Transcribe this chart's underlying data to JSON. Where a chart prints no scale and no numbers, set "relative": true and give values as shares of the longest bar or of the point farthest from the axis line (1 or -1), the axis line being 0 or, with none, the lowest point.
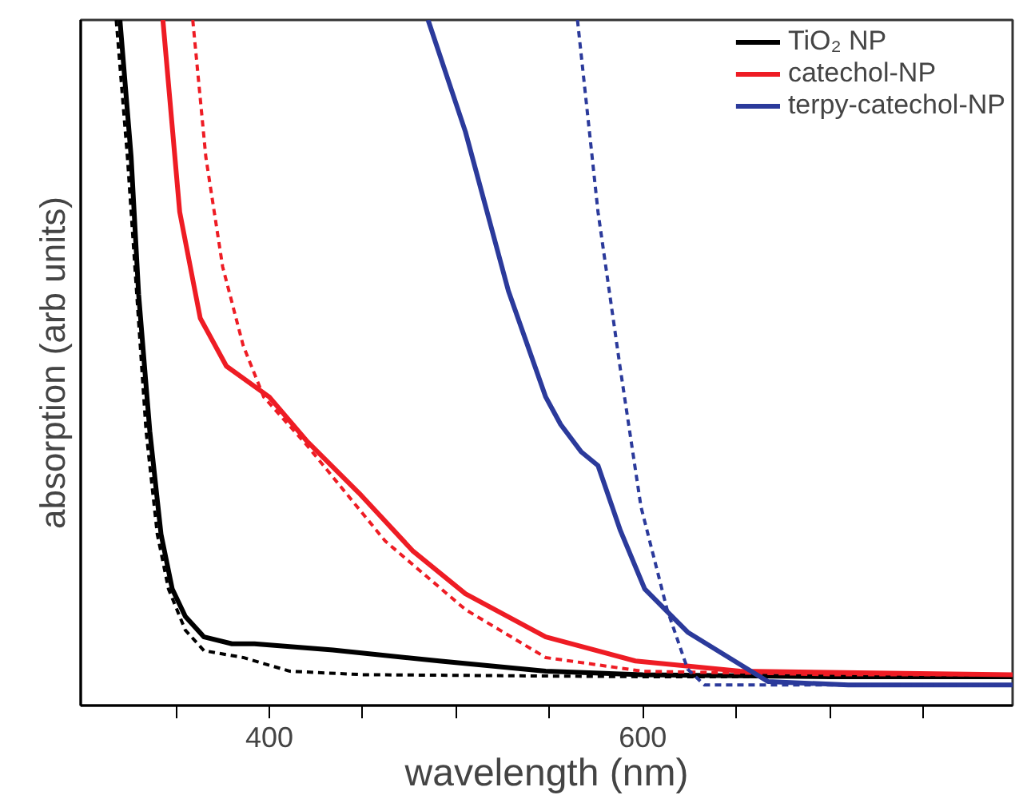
{
  "chart_data": {
    "type": "line",
    "relative": true,
    "xlabel": "wavelength (nm)",
    "ylabel": "absorption (arb units)",
    "xlim": [
      299,
      798
    ],
    "xticks": [
      {
        "value": 350,
        "label": null
      },
      400,
      {
        "value": 450,
        "label": null
      },
      {
        "value": 500,
        "label": null
      },
      {
        "value": 550,
        "label": null
      },
      600,
      {
        "value": 650,
        "label": null
      },
      {
        "value": 700,
        "label": null
      },
      {
        "value": 750,
        "label": null
      }
    ],
    "legend": "top right",
    "grid": false,
    "series": [
      {
        "name": "TiO₂ NP",
        "color": "#000000",
        "line_style": "solid",
        "x": [
          320,
          326,
          330,
          336,
          342,
          348,
          355,
          365,
          380,
          392,
          434,
          491,
          548,
          600,
          700,
          798
        ],
        "values": [
          1.0,
          0.8,
          0.6,
          0.4,
          0.25,
          0.17,
          0.13,
          0.1,
          0.09,
          0.09,
          0.081,
          0.065,
          0.05,
          0.045,
          0.042,
          0.042
        ]
      },
      {
        "color": "#000000",
        "line_style": "dashed",
        "x": [
          318,
          324,
          329,
          334,
          340,
          346,
          355,
          365,
          386,
          411,
          450,
          600,
          798
        ],
        "values": [
          1.0,
          0.8,
          0.6,
          0.4,
          0.25,
          0.17,
          0.11,
          0.08,
          0.07,
          0.05,
          0.045,
          0.042,
          0.042
        ]
      },
      {
        "name": "catechol-NP",
        "color": "#ee1c24",
        "line_style": "solid",
        "x": [
          343,
          352,
          363,
          377,
          400,
          420,
          448,
          477,
          505,
          548,
          596,
          652,
          798
        ],
        "values": [
          1.0,
          0.72,
          0.565,
          0.495,
          0.45,
          0.386,
          0.31,
          0.225,
          0.163,
          0.1,
          0.065,
          0.05,
          0.045
        ]
      },
      {
        "color": "#ee1c24",
        "line_style": "dashed",
        "x": [
          359,
          366,
          375,
          386,
          397,
          420,
          462,
          505,
          548,
          600,
          700,
          798
        ],
        "values": [
          1.0,
          0.8,
          0.64,
          0.525,
          0.45,
          0.38,
          0.24,
          0.14,
          0.07,
          0.05,
          0.045,
          0.045
        ]
      },
      {
        "name": "terpy-catechol-NP",
        "color": "#2b3a9b",
        "line_style": "solid",
        "x": [
          485,
          505,
          528,
          548,
          556,
          567,
          576,
          588,
          601,
          624,
          652,
          667,
          710,
          798
        ],
        "values": [
          1.0,
          0.837,
          0.605,
          0.45,
          0.41,
          0.37,
          0.35,
          0.255,
          0.17,
          0.107,
          0.06,
          0.035,
          0.03,
          0.03
        ]
      },
      {
        "color": "#2b3a9b",
        "line_style": "dashed",
        "x": [
          565,
          576,
          588,
          599,
          613,
          624,
          633,
          700,
          798
        ],
        "values": [
          1.0,
          0.72,
          0.49,
          0.29,
          0.14,
          0.053,
          0.03,
          0.03,
          0.03
        ]
      }
    ]
  }
}
